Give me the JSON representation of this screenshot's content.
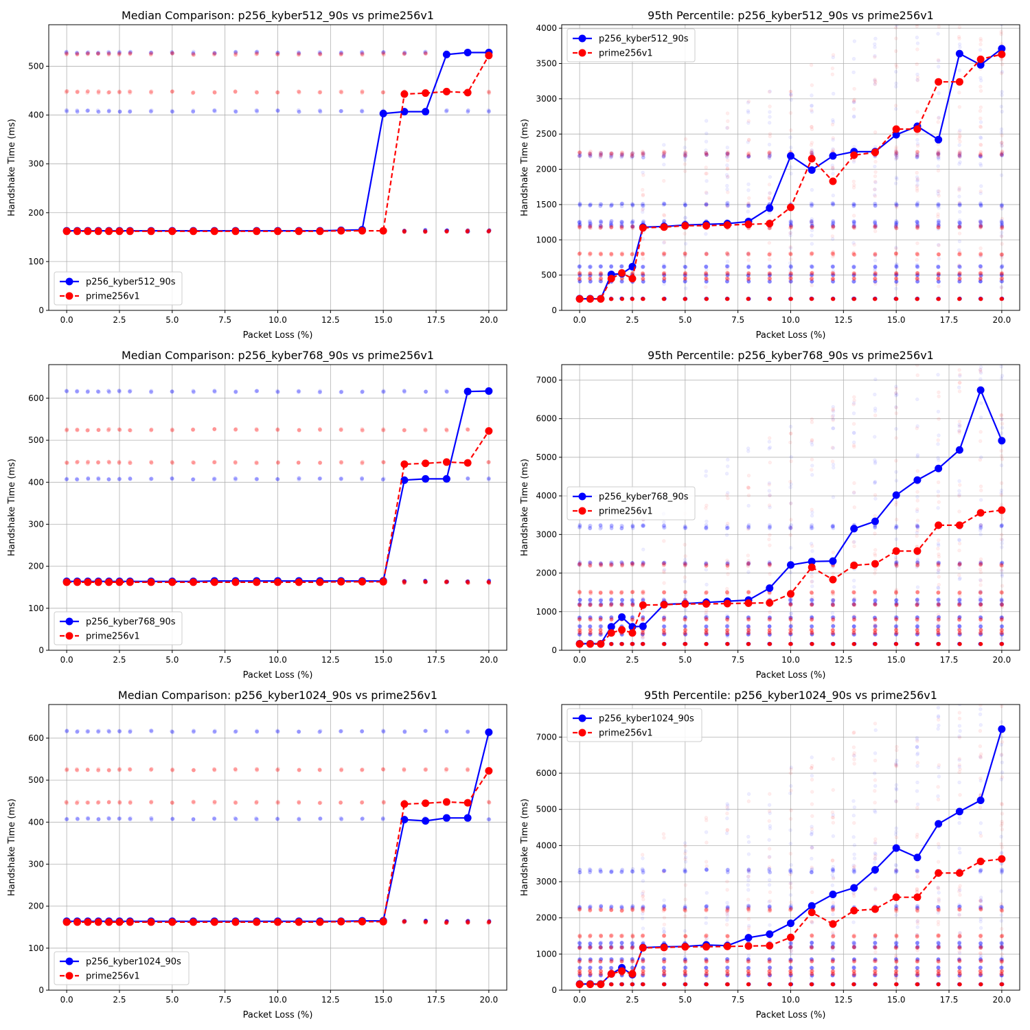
{
  "colors": {
    "kyber": "#0000ff",
    "prime": "#ff0000",
    "grid": "#b0b0b0"
  },
  "chart_data": [
    {
      "type": "line",
      "title": "Median Comparison: p256_kyber512_90s vs prime256v1",
      "xlabel": "Packet Loss (%)",
      "ylabel": "Handshake Time (ms)",
      "xlim": [
        -0.85,
        20.85
      ],
      "ylim": [
        0,
        585
      ],
      "xticks": [
        0,
        2.5,
        5,
        7.5,
        10,
        12.5,
        15,
        17.5,
        20
      ],
      "xtick_labels": [
        "0.0",
        "2.5",
        "5.0",
        "7.5",
        "10.0",
        "12.5",
        "15.0",
        "17.5",
        "20.0"
      ],
      "yticks": [
        0,
        100,
        200,
        300,
        400,
        500
      ],
      "ytick_labels": [
        "0",
        "100",
        "200",
        "300",
        "400",
        "500"
      ],
      "grid": true,
      "legend_position": "lower-left",
      "x": [
        0,
        0.5,
        1,
        1.5,
        2,
        2.5,
        3,
        4,
        5,
        6,
        7,
        8,
        9,
        10,
        11,
        12,
        13,
        14,
        15,
        16,
        17,
        18,
        19,
        20
      ],
      "series": [
        {
          "name": "p256_kyber512_90s",
          "style": "solid",
          "values": [
            163,
            163,
            163,
            163,
            163,
            163,
            163,
            163,
            163,
            163,
            163,
            163,
            163,
            163,
            163,
            163,
            164,
            165,
            403,
            407,
            407,
            524,
            528,
            528
          ]
        },
        {
          "name": "prime256v1",
          "style": "dashed",
          "values": [
            162,
            162,
            162,
            162,
            162,
            162,
            162,
            162,
            162,
            162,
            162,
            162,
            162,
            162,
            162,
            162,
            163,
            163,
            163,
            443,
            445,
            448,
            446,
            522
          ]
        }
      ],
      "scatter_clusters": {
        "kyber": [
          163,
          408,
          528
        ],
        "prime": [
          162,
          447,
          525
        ]
      }
    },
    {
      "type": "line",
      "title": "95th Percentile: p256_kyber512_90s vs prime256v1",
      "xlabel": "Packet Loss (%)",
      "ylabel": "Handshake Time (ms)",
      "xlim": [
        -0.85,
        20.85
      ],
      "ylim": [
        0,
        4050
      ],
      "xticks": [
        0,
        2.5,
        5,
        7.5,
        10,
        12.5,
        15,
        17.5,
        20
      ],
      "xtick_labels": [
        "0.0",
        "2.5",
        "5.0",
        "7.5",
        "10.0",
        "12.5",
        "15.0",
        "17.5",
        "20.0"
      ],
      "yticks": [
        0,
        500,
        1000,
        1500,
        2000,
        2500,
        3000,
        3500,
        4000
      ],
      "ytick_labels": [
        "0",
        "500",
        "1000",
        "1500",
        "2000",
        "2500",
        "3000",
        "3500",
        "4000"
      ],
      "grid": true,
      "legend_position": "upper-left",
      "x": [
        0,
        0.5,
        1,
        1.5,
        2,
        2.5,
        3,
        4,
        5,
        6,
        7,
        8,
        9,
        10,
        11,
        12,
        13,
        14,
        15,
        16,
        17,
        18,
        19,
        20
      ],
      "series": [
        {
          "name": "p256_kyber512_90s",
          "style": "solid",
          "values": [
            165,
            165,
            165,
            510,
            520,
            620,
            1180,
            1190,
            1210,
            1220,
            1230,
            1260,
            1450,
            2190,
            1990,
            2190,
            2250,
            2250,
            2490,
            2610,
            2420,
            3640,
            3480,
            3710
          ]
        },
        {
          "name": "prime256v1",
          "style": "dashed",
          "values": [
            162,
            162,
            162,
            450,
            530,
            450,
            1170,
            1180,
            1200,
            1200,
            1210,
            1220,
            1230,
            1460,
            2150,
            1830,
            2200,
            2240,
            2570,
            2570,
            3240,
            3240,
            3560,
            3630
          ]
        }
      ],
      "scatter_clusters": {
        "kyber": [
          165,
          410,
          500,
          620,
          1200,
          1250,
          1500,
          2200
        ],
        "prime": [
          162,
          450,
          525,
          800,
          1180,
          2220
        ]
      }
    },
    {
      "type": "line",
      "title": "Median Comparison: p256_kyber768_90s vs prime256v1",
      "xlabel": "Packet Loss (%)",
      "ylabel": "Handshake Time (ms)",
      "xlim": [
        -0.85,
        20.85
      ],
      "ylim": [
        0,
        680
      ],
      "xticks": [
        0,
        2.5,
        5,
        7.5,
        10,
        12.5,
        15,
        17.5,
        20
      ],
      "xtick_labels": [
        "0.0",
        "2.5",
        "5.0",
        "7.5",
        "10.0",
        "12.5",
        "15.0",
        "17.5",
        "20.0"
      ],
      "yticks": [
        0,
        100,
        200,
        300,
        400,
        500,
        600
      ],
      "ytick_labels": [
        "0",
        "100",
        "200",
        "300",
        "400",
        "500",
        "600"
      ],
      "grid": true,
      "legend_position": "lower-left",
      "x": [
        0,
        0.5,
        1,
        1.5,
        2,
        2.5,
        3,
        4,
        5,
        6,
        7,
        8,
        9,
        10,
        11,
        12,
        13,
        14,
        15,
        16,
        17,
        18,
        19,
        20
      ],
      "series": [
        {
          "name": "p256_kyber768_90s",
          "style": "solid",
          "values": [
            164,
            164,
            164,
            164,
            164,
            164,
            164,
            164,
            164,
            164,
            165,
            165,
            165,
            165,
            165,
            165,
            165,
            165,
            165,
            405,
            408,
            408,
            616,
            617
          ]
        },
        {
          "name": "prime256v1",
          "style": "dashed",
          "values": [
            162,
            162,
            162,
            162,
            162,
            162,
            162,
            162,
            162,
            162,
            162,
            162,
            162,
            162,
            162,
            162,
            163,
            163,
            163,
            443,
            445,
            448,
            446,
            522
          ]
        }
      ],
      "scatter_clusters": {
        "kyber": [
          164,
          408,
          616
        ],
        "prime": [
          162,
          447,
          525
        ]
      }
    },
    {
      "type": "line",
      "title": "95th Percentile: p256_kyber768_90s vs prime256v1",
      "xlabel": "Packet Loss (%)",
      "ylabel": "Handshake Time (ms)",
      "xlim": [
        -0.85,
        20.85
      ],
      "ylim": [
        0,
        7400
      ],
      "xticks": [
        0,
        2.5,
        5,
        7.5,
        10,
        12.5,
        15,
        17.5,
        20
      ],
      "xtick_labels": [
        "0.0",
        "2.5",
        "5.0",
        "7.5",
        "10.0",
        "12.5",
        "15.0",
        "17.5",
        "20.0"
      ],
      "yticks": [
        0,
        1000,
        2000,
        3000,
        4000,
        5000,
        6000,
        7000
      ],
      "ytick_labels": [
        "0",
        "1000",
        "2000",
        "3000",
        "4000",
        "5000",
        "6000",
        "7000"
      ],
      "grid": true,
      "legend_position": "center-left",
      "x": [
        0,
        0.5,
        1,
        1.5,
        2,
        2.5,
        3,
        4,
        5,
        6,
        7,
        8,
        9,
        10,
        11,
        12,
        13,
        14,
        15,
        16,
        17,
        18,
        19,
        20
      ],
      "series": [
        {
          "name": "p256_kyber768_90s",
          "style": "solid",
          "values": [
            170,
            170,
            170,
            610,
            860,
            610,
            620,
            1190,
            1210,
            1240,
            1270,
            1300,
            1610,
            2210,
            2300,
            2310,
            3150,
            3340,
            4020,
            4410,
            4710,
            5190,
            6740,
            5430
          ]
        },
        {
          "name": "prime256v1",
          "style": "dashed",
          "values": [
            162,
            162,
            162,
            450,
            530,
            450,
            1170,
            1180,
            1200,
            1200,
            1210,
            1220,
            1230,
            1460,
            2150,
            1830,
            2200,
            2240,
            2570,
            2570,
            3240,
            3240,
            3560,
            3630
          ]
        }
      ],
      "scatter_clusters": {
        "kyber": [
          165,
          410,
          620,
          850,
          1200,
          1300,
          2250,
          3200
        ],
        "prime": [
          162,
          450,
          525,
          800,
          1180,
          1500,
          2220
        ]
      }
    },
    {
      "type": "line",
      "title": "Median Comparison: p256_kyber1024_90s vs prime256v1",
      "xlabel": "Packet Loss (%)",
      "ylabel": "Handshake Time (ms)",
      "xlim": [
        -0.85,
        20.85
      ],
      "ylim": [
        0,
        680
      ],
      "xticks": [
        0,
        2.5,
        5,
        7.5,
        10,
        12.5,
        15,
        17.5,
        20
      ],
      "xtick_labels": [
        "0.0",
        "2.5",
        "5.0",
        "7.5",
        "10.0",
        "12.5",
        "15.0",
        "17.5",
        "20.0"
      ],
      "yticks": [
        0,
        100,
        200,
        300,
        400,
        500,
        600
      ],
      "ytick_labels": [
        "0",
        "100",
        "200",
        "300",
        "400",
        "500",
        "600"
      ],
      "grid": true,
      "legend_position": "lower-left",
      "x": [
        0,
        0.5,
        1,
        1.5,
        2,
        2.5,
        3,
        4,
        5,
        6,
        7,
        8,
        9,
        10,
        11,
        12,
        13,
        14,
        15,
        16,
        17,
        18,
        19,
        20
      ],
      "series": [
        {
          "name": "p256_kyber1024_90s",
          "style": "solid",
          "values": [
            164,
            164,
            164,
            164,
            164,
            164,
            164,
            164,
            164,
            164,
            164,
            164,
            164,
            164,
            164,
            164,
            164,
            165,
            165,
            406,
            403,
            410,
            410,
            614
          ]
        },
        {
          "name": "prime256v1",
          "style": "dashed",
          "values": [
            162,
            162,
            162,
            162,
            162,
            162,
            162,
            162,
            162,
            162,
            162,
            162,
            162,
            162,
            162,
            162,
            163,
            163,
            163,
            443,
            445,
            448,
            446,
            522
          ]
        }
      ],
      "scatter_clusters": {
        "kyber": [
          164,
          408,
          616
        ],
        "prime": [
          162,
          447,
          525
        ]
      }
    },
    {
      "type": "line",
      "title": "95th Percentile: p256_kyber1024_90s vs prime256v1",
      "xlabel": "Packet Loss (%)",
      "ylabel": "Handshake Time (ms)",
      "xlim": [
        -0.85,
        20.85
      ],
      "ylim": [
        0,
        7900
      ],
      "xticks": [
        0,
        2.5,
        5,
        7.5,
        10,
        12.5,
        15,
        17.5,
        20
      ],
      "xtick_labels": [
        "0.0",
        "2.5",
        "5.0",
        "7.5",
        "10.0",
        "12.5",
        "15.0",
        "17.5",
        "20.0"
      ],
      "yticks": [
        0,
        1000,
        2000,
        3000,
        4000,
        5000,
        6000,
        7000
      ],
      "ytick_labels": [
        "0",
        "1000",
        "2000",
        "3000",
        "4000",
        "5000",
        "6000",
        "7000"
      ],
      "grid": true,
      "legend_position": "upper-left",
      "x": [
        0,
        0.5,
        1,
        1.5,
        2,
        2.5,
        3,
        4,
        5,
        6,
        7,
        8,
        9,
        10,
        11,
        12,
        13,
        14,
        15,
        16,
        17,
        18,
        19,
        20
      ],
      "series": [
        {
          "name": "p256_kyber1024_90s",
          "style": "solid",
          "values": [
            170,
            170,
            170,
            450,
            620,
            430,
            1180,
            1200,
            1210,
            1250,
            1230,
            1450,
            1550,
            1850,
            2330,
            2650,
            2830,
            3330,
            3930,
            3670,
            4600,
            4940,
            5250,
            7220
          ]
        },
        {
          "name": "prime256v1",
          "style": "dashed",
          "values": [
            162,
            162,
            162,
            450,
            530,
            450,
            1170,
            1180,
            1200,
            1200,
            1210,
            1220,
            1230,
            1460,
            2150,
            1830,
            2200,
            2240,
            2570,
            2570,
            3240,
            3240,
            3560,
            3630
          ]
        }
      ],
      "scatter_clusters": {
        "kyber": [
          165,
          410,
          620,
          850,
          1200,
          1300,
          2300,
          3300
        ],
        "prime": [
          162,
          450,
          525,
          800,
          1180,
          1500,
          2220
        ]
      }
    }
  ]
}
